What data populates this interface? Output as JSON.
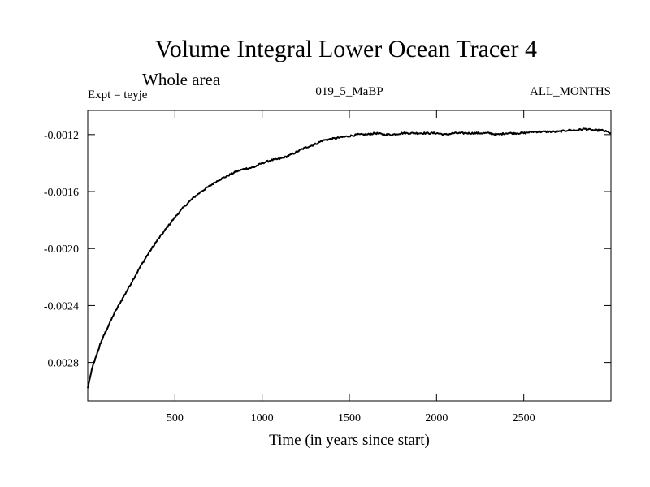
{
  "chart_data": {
    "type": "line",
    "title": "Volume Integral Lower Ocean Tracer 4",
    "subtitle": "Whole area",
    "experiment_label": "Expt = teyje",
    "period_label": "019_5_MaBP",
    "months_label": "ALL_MONTHS",
    "xlabel": "Time (in years since start)",
    "ylabel": "",
    "xlim": [
      0,
      3000
    ],
    "ylim": [
      -0.00307,
      -0.00103
    ],
    "x_ticks": [
      500,
      1000,
      1500,
      2000,
      2500
    ],
    "x_tick_labels": [
      "500",
      "1000",
      "1500",
      "2000",
      "2500"
    ],
    "y_ticks": [
      -0.0028,
      -0.0024,
      -0.002,
      -0.0016,
      -0.0012
    ],
    "y_tick_labels": [
      "-0.0028",
      "-0.0024",
      "-0.0020",
      "-0.0016",
      "-0.0012"
    ],
    "grid": false,
    "series": [
      {
        "name": "Volume Integral Lower Ocean Tracer 4",
        "color": "#000000",
        "x": [
          0,
          25,
          50,
          75,
          100,
          150,
          200,
          250,
          300,
          350,
          400,
          450,
          500,
          550,
          600,
          650,
          700,
          750,
          800,
          850,
          900,
          950,
          1000,
          1050,
          1100,
          1150,
          1200,
          1250,
          1300,
          1350,
          1400,
          1450,
          1500,
          1550,
          1600,
          1650,
          1700,
          1750,
          1800,
          1850,
          1900,
          1950,
          2000,
          2050,
          2100,
          2150,
          2200,
          2250,
          2300,
          2350,
          2400,
          2450,
          2500,
          2550,
          2600,
          2650,
          2700,
          2750,
          2800,
          2850,
          2900,
          2950,
          3000
        ],
        "values": [
          -0.00298,
          -0.00284,
          -0.00275,
          -0.00266,
          -0.00259,
          -0.00246,
          -0.00235,
          -0.00224,
          -0.00213,
          -0.00203,
          -0.00194,
          -0.00186,
          -0.00178,
          -0.00171,
          -0.00165,
          -0.0016,
          -0.00156,
          -0.00152,
          -0.00149,
          -0.00146,
          -0.00144,
          -0.00143,
          -0.0014,
          -0.00138,
          -0.00137,
          -0.00135,
          -0.00132,
          -0.00129,
          -0.00127,
          -0.00124,
          -0.00123,
          -0.00122,
          -0.00121,
          -0.0012,
          -0.0012,
          -0.00119,
          -0.0012,
          -0.0012,
          -0.00119,
          -0.00119,
          -0.00119,
          -0.00119,
          -0.00119,
          -0.0012,
          -0.00119,
          -0.00119,
          -0.00119,
          -0.00119,
          -0.00119,
          -0.0012,
          -0.00119,
          -0.00119,
          -0.00119,
          -0.00118,
          -0.00118,
          -0.00118,
          -0.00118,
          -0.00117,
          -0.00117,
          -0.00116,
          -0.00117,
          -0.00117,
          -0.00119
        ]
      }
    ]
  }
}
